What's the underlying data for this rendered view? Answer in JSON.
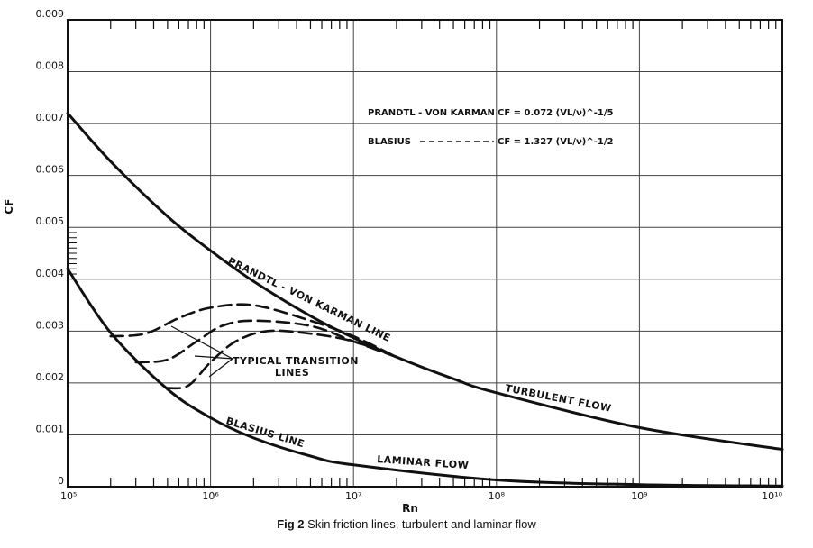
{
  "chart_data": {
    "type": "line",
    "title": "",
    "xlabel": "Rn",
    "ylabel": "CF",
    "xscale": "log",
    "xlim": [
      100000,
      10000000000
    ],
    "ylim": [
      0,
      0.009
    ],
    "grid": true,
    "x_tick_labels": [
      "10⁵",
      "10⁶",
      "10⁷",
      "10⁸",
      "10⁹",
      "10¹⁰"
    ],
    "y_tick_labels": [
      "0",
      "0.001",
      "0.002",
      "0.003",
      "0.004",
      "0.005",
      "0.006",
      "0.007",
      "0.008",
      "0.009"
    ],
    "series": [
      {
        "name": "PRANDTL-VON KARMAN LINE",
        "style": "solid",
        "x": [
          100000,
          200000,
          500000,
          1000000,
          2000000,
          5000000,
          10000000,
          20000000,
          50000000,
          100000000,
          1000000000,
          10000000000
        ],
        "y": [
          0.0072,
          0.00627,
          0.00521,
          0.00455,
          0.00396,
          0.00329,
          0.00287,
          0.0025,
          0.00208,
          0.00181,
          0.00114,
          0.00072
        ]
      },
      {
        "name": "BLASIUS LINE",
        "style": "solid",
        "x": [
          100000,
          200000,
          500000,
          1000000,
          2000000,
          5000000,
          10000000,
          100000000,
          1000000000,
          10000000000
        ],
        "y": [
          0.0042,
          0.00297,
          0.00188,
          0.00133,
          0.00094,
          0.00059,
          0.00042,
          0.00013,
          4e-05,
          1.3e-05
        ]
      },
      {
        "name": "TYPICAL TRANSITION LINES",
        "style": "dashed",
        "x": [
          200000,
          350000,
          600000,
          1000000,
          2000000,
          5000000,
          10000000,
          20000000
        ],
        "y": [
          0.0029,
          0.00295,
          0.00325,
          0.00345,
          0.0035,
          0.0032,
          0.0029,
          0.0025
        ]
      },
      {
        "name": "TYPICAL TRANSITION LINES",
        "style": "dashed",
        "x": [
          300000,
          500000,
          800000,
          1200000,
          2000000,
          5000000,
          10000000,
          20000000
        ],
        "y": [
          0.0024,
          0.00245,
          0.0028,
          0.0031,
          0.0032,
          0.0031,
          0.0028,
          0.0025
        ]
      },
      {
        "name": "TYPICAL TRANSITION LINES",
        "style": "dashed",
        "x": [
          500000,
          700000,
          1000000,
          1500000,
          2500000,
          5000000,
          10000000,
          20000000
        ],
        "y": [
          0.0019,
          0.00195,
          0.0024,
          0.0028,
          0.003,
          0.00295,
          0.0028,
          0.0025
        ]
      }
    ],
    "annotations": {
      "prandtl_line": "PRANDTL - VON KARMAN LINE",
      "turbulent_flow": "TURBULENT FLOW",
      "blasius_line": "BLASIUS LINE",
      "laminar_flow": "LAMINAR FLOW",
      "transition_1": "TYPICAL TRANSITION",
      "transition_2": "LINES"
    },
    "legend": {
      "placement": "top-right",
      "prandtl_label": "PRANDTL - VON KARMAN",
      "prandtl_formula": "CF = 0.072 (VL/ν)^-1/5",
      "blasius_label": "BLASIUS",
      "blasius_formula": "CF = 1.327 (VL/ν)^-1/2"
    }
  },
  "caption": {
    "prefix": "Fig 2",
    "text": " Skin friction lines, turbulent and laminar flow"
  }
}
